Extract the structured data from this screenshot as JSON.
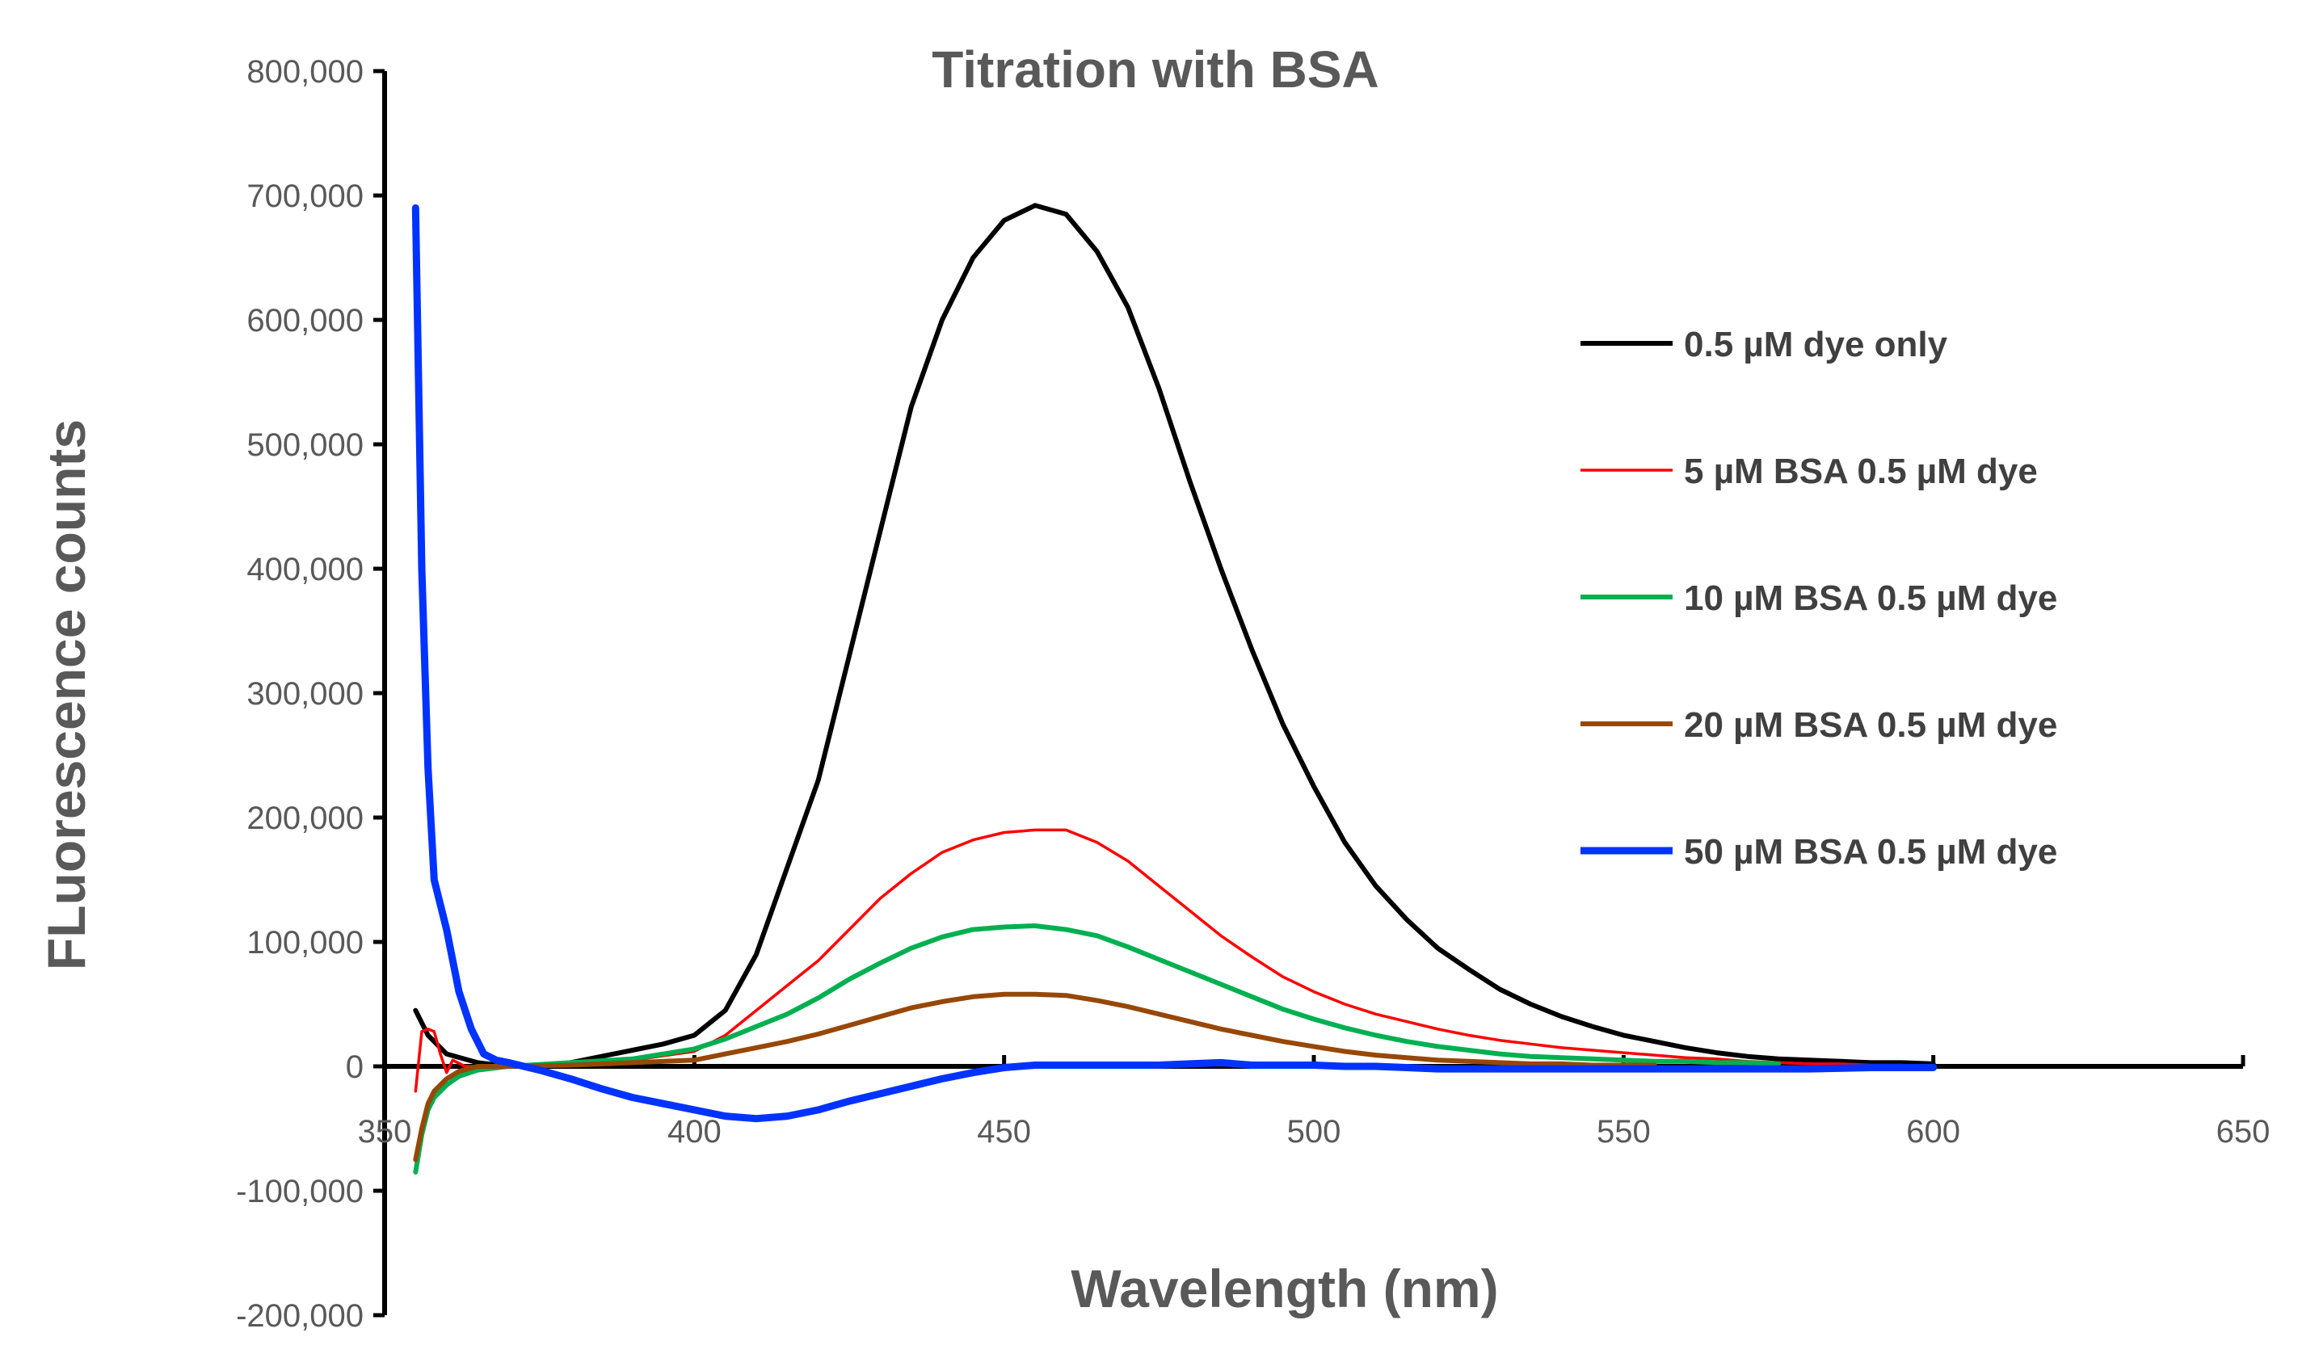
{
  "chart_data": {
    "type": "line",
    "title": "Titration with  BSA",
    "xlabel": "Wavelength (nm)",
    "ylabel": "FLuorescence counts",
    "xlim": [
      350,
      650
    ],
    "ylim": [
      -200000,
      800000
    ],
    "x_ticks": [
      350,
      400,
      450,
      500,
      550,
      600,
      650
    ],
    "x_tick_labels": [
      "350",
      "400",
      "450",
      "500",
      "550",
      "600",
      "650"
    ],
    "y_ticks": [
      -200000,
      -100000,
      0,
      100000,
      200000,
      300000,
      400000,
      500000,
      600000,
      700000,
      800000
    ],
    "y_tick_labels": [
      "-200,000",
      "-100,000",
      "0",
      "100,000",
      "200,000",
      "300,000",
      "400,000",
      "500,000",
      "600,000",
      "700,000",
      "800,000"
    ],
    "grid": false,
    "legend_position": "right",
    "series": [
      {
        "name": "0.5 µM dye only",
        "color": "#000000",
        "points": [
          [
            355,
            45000
          ],
          [
            357,
            25000
          ],
          [
            360,
            10000
          ],
          [
            365,
            3000
          ],
          [
            370,
            0
          ],
          [
            375,
            0
          ],
          [
            380,
            3000
          ],
          [
            385,
            8000
          ],
          [
            390,
            13000
          ],
          [
            395,
            18000
          ],
          [
            400,
            25000
          ],
          [
            405,
            45000
          ],
          [
            410,
            90000
          ],
          [
            415,
            160000
          ],
          [
            420,
            230000
          ],
          [
            425,
            330000
          ],
          [
            430,
            430000
          ],
          [
            435,
            530000
          ],
          [
            440,
            600000
          ],
          [
            445,
            650000
          ],
          [
            450,
            680000
          ],
          [
            455,
            692000
          ],
          [
            460,
            685000
          ],
          [
            465,
            655000
          ],
          [
            470,
            610000
          ],
          [
            475,
            545000
          ],
          [
            480,
            470000
          ],
          [
            485,
            400000
          ],
          [
            490,
            335000
          ],
          [
            495,
            275000
          ],
          [
            500,
            225000
          ],
          [
            505,
            180000
          ],
          [
            510,
            145000
          ],
          [
            515,
            118000
          ],
          [
            520,
            95000
          ],
          [
            525,
            78000
          ],
          [
            530,
            62000
          ],
          [
            535,
            50000
          ],
          [
            540,
            40000
          ],
          [
            545,
            32000
          ],
          [
            550,
            25000
          ],
          [
            555,
            20000
          ],
          [
            560,
            15000
          ],
          [
            565,
            11000
          ],
          [
            570,
            8000
          ],
          [
            575,
            6000
          ],
          [
            580,
            5000
          ],
          [
            585,
            4000
          ],
          [
            590,
            3000
          ],
          [
            595,
            3000
          ],
          [
            600,
            2000
          ]
        ]
      },
      {
        "name": "5 µM BSA 0.5 µM dye",
        "color": "#ff0000",
        "points": [
          [
            355,
            -20000
          ],
          [
            356,
            28000
          ],
          [
            357,
            30000
          ],
          [
            358,
            28000
          ],
          [
            359,
            10000
          ],
          [
            360,
            -5000
          ],
          [
            361,
            5000
          ],
          [
            363,
            0
          ],
          [
            365,
            0
          ],
          [
            370,
            0
          ],
          [
            380,
            2000
          ],
          [
            390,
            5000
          ],
          [
            400,
            12000
          ],
          [
            405,
            25000
          ],
          [
            410,
            45000
          ],
          [
            415,
            65000
          ],
          [
            420,
            85000
          ],
          [
            425,
            110000
          ],
          [
            430,
            135000
          ],
          [
            435,
            155000
          ],
          [
            440,
            172000
          ],
          [
            445,
            182000
          ],
          [
            450,
            188000
          ],
          [
            455,
            190000
          ],
          [
            460,
            190000
          ],
          [
            465,
            180000
          ],
          [
            470,
            165000
          ],
          [
            475,
            145000
          ],
          [
            480,
            125000
          ],
          [
            485,
            105000
          ],
          [
            490,
            88000
          ],
          [
            495,
            72000
          ],
          [
            500,
            60000
          ],
          [
            505,
            50000
          ],
          [
            510,
            42000
          ],
          [
            515,
            36000
          ],
          [
            520,
            30000
          ],
          [
            525,
            25000
          ],
          [
            530,
            21000
          ],
          [
            535,
            18000
          ],
          [
            540,
            15000
          ],
          [
            545,
            13000
          ],
          [
            550,
            11000
          ],
          [
            555,
            9000
          ],
          [
            560,
            7000
          ],
          [
            565,
            6000
          ],
          [
            570,
            4000
          ],
          [
            575,
            3000
          ],
          [
            580,
            2000
          ],
          [
            585,
            2000
          ],
          [
            590,
            1000
          ],
          [
            595,
            1000
          ]
        ]
      },
      {
        "name": "10 µM BSA 0.5 µM dye",
        "color": "#00b050",
        "points": [
          [
            355,
            -85000
          ],
          [
            356,
            -55000
          ],
          [
            357,
            -35000
          ],
          [
            358,
            -25000
          ],
          [
            360,
            -15000
          ],
          [
            362,
            -8000
          ],
          [
            365,
            -3000
          ],
          [
            370,
            0
          ],
          [
            380,
            3000
          ],
          [
            390,
            6000
          ],
          [
            400,
            14000
          ],
          [
            405,
            22000
          ],
          [
            410,
            32000
          ],
          [
            415,
            42000
          ],
          [
            420,
            55000
          ],
          [
            425,
            70000
          ],
          [
            430,
            83000
          ],
          [
            435,
            95000
          ],
          [
            440,
            104000
          ],
          [
            445,
            110000
          ],
          [
            450,
            112000
          ],
          [
            455,
            113000
          ],
          [
            460,
            110000
          ],
          [
            465,
            105000
          ],
          [
            470,
            96000
          ],
          [
            475,
            86000
          ],
          [
            480,
            76000
          ],
          [
            485,
            66000
          ],
          [
            490,
            56000
          ],
          [
            495,
            46000
          ],
          [
            500,
            38000
          ],
          [
            505,
            31000
          ],
          [
            510,
            25000
          ],
          [
            515,
            20000
          ],
          [
            520,
            16000
          ],
          [
            525,
            13000
          ],
          [
            530,
            10000
          ],
          [
            535,
            8000
          ],
          [
            540,
            7000
          ],
          [
            545,
            6000
          ],
          [
            550,
            5000
          ],
          [
            555,
            4000
          ],
          [
            560,
            4000
          ],
          [
            565,
            3000
          ],
          [
            570,
            3000
          ],
          [
            575,
            2000
          ]
        ]
      },
      {
        "name": "20 µM BSA 0.5 µM dye",
        "color": "#974706",
        "points": [
          [
            355,
            -75000
          ],
          [
            356,
            -50000
          ],
          [
            357,
            -30000
          ],
          [
            358,
            -20000
          ],
          [
            360,
            -10000
          ],
          [
            362,
            -4000
          ],
          [
            365,
            0
          ],
          [
            370,
            0
          ],
          [
            380,
            1000
          ],
          [
            390,
            3000
          ],
          [
            400,
            5000
          ],
          [
            405,
            10000
          ],
          [
            410,
            15000
          ],
          [
            415,
            20000
          ],
          [
            420,
            26000
          ],
          [
            425,
            33000
          ],
          [
            430,
            40000
          ],
          [
            435,
            47000
          ],
          [
            440,
            52000
          ],
          [
            445,
            56000
          ],
          [
            450,
            58000
          ],
          [
            455,
            58000
          ],
          [
            460,
            57000
          ],
          [
            465,
            53000
          ],
          [
            470,
            48000
          ],
          [
            475,
            42000
          ],
          [
            480,
            36000
          ],
          [
            485,
            30000
          ],
          [
            490,
            25000
          ],
          [
            495,
            20000
          ],
          [
            500,
            16000
          ],
          [
            505,
            12000
          ],
          [
            510,
            9000
          ],
          [
            515,
            7000
          ],
          [
            520,
            5000
          ],
          [
            525,
            4000
          ],
          [
            530,
            3000
          ],
          [
            535,
            2000
          ],
          [
            540,
            2000
          ],
          [
            545,
            1000
          ],
          [
            550,
            1000
          ],
          [
            555,
            1000
          ]
        ]
      },
      {
        "name": "50 µM BSA 0.5 µM dye",
        "color": "#0033ff",
        "points": [
          [
            355,
            690000
          ],
          [
            356,
            400000
          ],
          [
            357,
            240000
          ],
          [
            358,
            150000
          ],
          [
            360,
            110000
          ],
          [
            362,
            60000
          ],
          [
            364,
            30000
          ],
          [
            366,
            10000
          ],
          [
            368,
            5000
          ],
          [
            370,
            3000
          ],
          [
            375,
            -3000
          ],
          [
            380,
            -10000
          ],
          [
            385,
            -18000
          ],
          [
            390,
            -25000
          ],
          [
            395,
            -30000
          ],
          [
            400,
            -35000
          ],
          [
            405,
            -40000
          ],
          [
            410,
            -42000
          ],
          [
            415,
            -40000
          ],
          [
            420,
            -35000
          ],
          [
            425,
            -28000
          ],
          [
            430,
            -22000
          ],
          [
            435,
            -16000
          ],
          [
            440,
            -10000
          ],
          [
            445,
            -5000
          ],
          [
            450,
            -1000
          ],
          [
            455,
            1000
          ],
          [
            460,
            1000
          ],
          [
            465,
            1000
          ],
          [
            470,
            1000
          ],
          [
            475,
            1000
          ],
          [
            480,
            2000
          ],
          [
            485,
            3000
          ],
          [
            490,
            1000
          ],
          [
            495,
            1000
          ],
          [
            500,
            1000
          ],
          [
            505,
            0
          ],
          [
            510,
            0
          ],
          [
            515,
            -1000
          ],
          [
            520,
            -2000
          ],
          [
            525,
            -2000
          ],
          [
            530,
            -2000
          ],
          [
            540,
            -2000
          ],
          [
            550,
            -2000
          ],
          [
            560,
            -2000
          ],
          [
            570,
            -2000
          ],
          [
            580,
            -2000
          ],
          [
            590,
            -1000
          ],
          [
            595,
            -1000
          ],
          [
            600,
            -1000
          ]
        ]
      }
    ]
  }
}
